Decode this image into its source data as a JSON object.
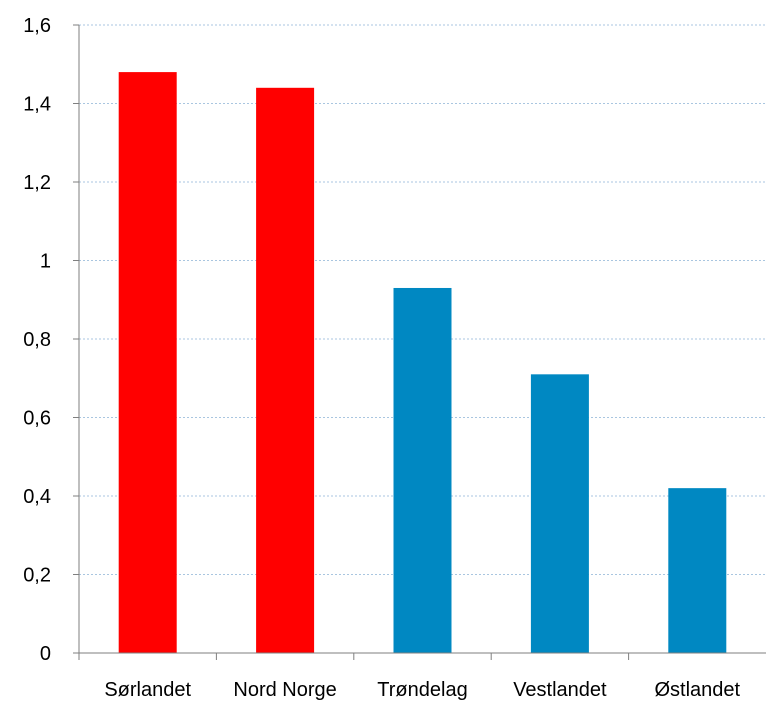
{
  "chart_data": {
    "type": "bar",
    "title": "",
    "xlabel": "",
    "ylabel": "",
    "categories": [
      "Sørlandet",
      "Nord Norge",
      "Trøndelag",
      "Vestlandet",
      "Østlandet"
    ],
    "values": [
      1.48,
      1.44,
      0.93,
      0.71,
      0.42
    ],
    "bar_colors": [
      "#ff0000",
      "#ff0000",
      "#0088c2",
      "#0088c2",
      "#0088c2"
    ],
    "ylim": [
      0,
      1.6
    ],
    "yticks": [
      0,
      0.2,
      0.4,
      0.6,
      0.8,
      1,
      1.2,
      1.4,
      1.6
    ],
    "ytick_labels": [
      "0",
      "0,2",
      "0,4",
      "0,6",
      "0,8",
      "1",
      "1,2",
      "1,4",
      "1,6"
    ],
    "grid": true,
    "gridline_color": "#a9c6e0",
    "axis_color": "#7f7f7f",
    "legend": "none"
  }
}
